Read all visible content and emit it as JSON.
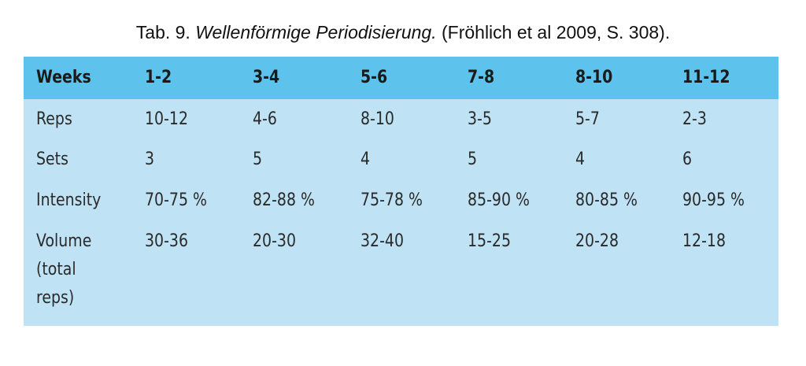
{
  "caption": {
    "prefix": "Tab. 9. ",
    "title": "Wellenförmige Periodisierung.",
    "source": " (Fröhlich et al 2009, S. 308)."
  },
  "table": {
    "headers": [
      "Weeks",
      "1-2",
      "3-4",
      "5-6",
      "7-8",
      "8-10",
      "11-12"
    ],
    "rows": [
      [
        "Reps",
        "10-12",
        "4-6",
        "8-10",
        "3-5",
        "5-7",
        "2-3"
      ],
      [
        "Sets",
        "3",
        "5",
        "4",
        "5",
        "4",
        "6"
      ],
      [
        "Intensity",
        "70-75 %",
        "82-88 %",
        "75-78 %",
        "85-90 %",
        "80-85 %",
        "90-95 %"
      ]
    ],
    "volume_label_lines": [
      "Volume",
      "(total",
      "reps)"
    ],
    "volume_values": [
      "30-36",
      "20-30",
      "32-40",
      "15-25",
      "20-28",
      "12-18"
    ]
  },
  "colors": {
    "header_bg": "#5ec3ec",
    "body_bg": "#bfe3f5"
  }
}
